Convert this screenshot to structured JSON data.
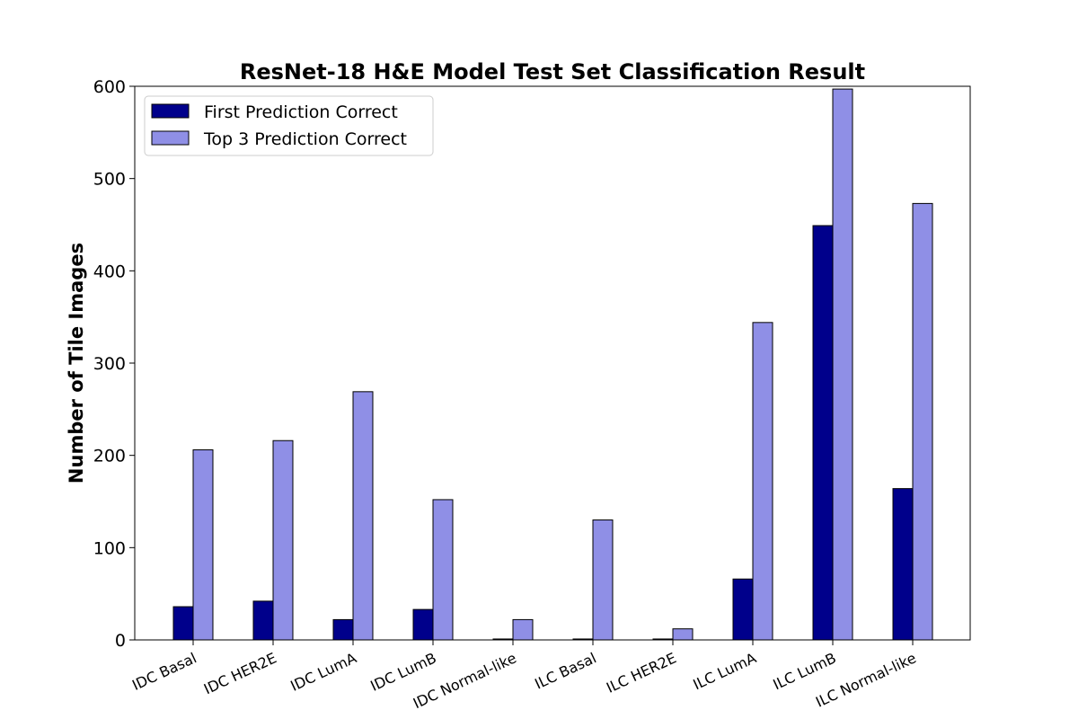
{
  "chart_data": {
    "type": "bar",
    "title": "ResNet-18 H&E Model Test Set Classification Result",
    "xlabel": "",
    "ylabel": "Number of Tile Images",
    "ylim": [
      0,
      600
    ],
    "yticks": [
      "0",
      "100",
      "200",
      "300",
      "400",
      "500",
      "600"
    ],
    "categories": [
      "IDC Basal",
      "IDC HER2E",
      "IDC LumA",
      "IDC LumB",
      "IDC Normal-like",
      "ILC Basal",
      "ILC HER2E",
      "ILC LumA",
      "ILC LumB",
      "ILC Normal-like"
    ],
    "series": [
      {
        "name": "First Prediction Correct",
        "color": "#00008b",
        "values": [
          36,
          42,
          22,
          33,
          1,
          1,
          1,
          66,
          449,
          164
        ]
      },
      {
        "name": "Top 3 Prediction Correct",
        "color": "#8f8fe6",
        "values": [
          206,
          216,
          269,
          152,
          22,
          130,
          12,
          344,
          597,
          473
        ]
      }
    ],
    "legend_position": "top-left",
    "grid": false
  }
}
